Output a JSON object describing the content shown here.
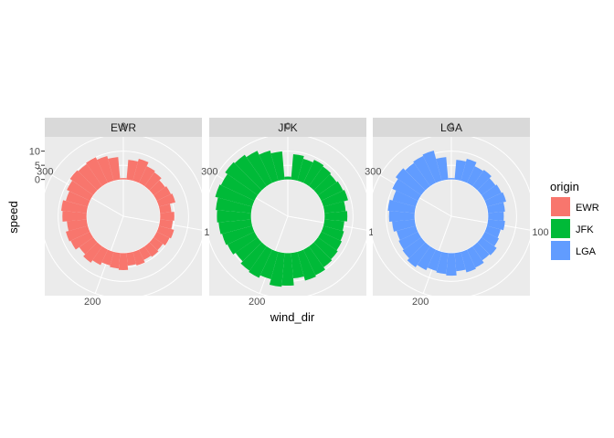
{
  "chart_data": {
    "type": "bar",
    "coord": "polar",
    "xlabel": "wind_dir",
    "ylabel": "speed",
    "x_ticks": [
      "0",
      "100",
      "200",
      "300"
    ],
    "y_ticks": [
      "0",
      "5",
      "10"
    ],
    "xlim": [
      0,
      360
    ],
    "ylim": [
      -13,
      16
    ],
    "grid": true,
    "legend_title": "origin",
    "legend_position": "right",
    "bin_width_deg": 10,
    "wind_dir": [
      0,
      10,
      20,
      30,
      40,
      50,
      60,
      70,
      80,
      90,
      100,
      110,
      120,
      130,
      140,
      150,
      160,
      170,
      180,
      190,
      200,
      210,
      220,
      230,
      240,
      250,
      260,
      270,
      280,
      290,
      300,
      310,
      320,
      330,
      340,
      350
    ],
    "series": [
      {
        "name": "EWR",
        "color": "#F8766D",
        "values": [
          0.5,
          7,
          8,
          6.5,
          6,
          5,
          5.5,
          6,
          4,
          5,
          4.5,
          5.5,
          5,
          4,
          4.5,
          4,
          5,
          4.5,
          6,
          5.5,
          5,
          6,
          7,
          6,
          7.5,
          8,
          7,
          8.5,
          9,
          8,
          9,
          10,
          9.5,
          10,
          9,
          8
        ]
      },
      {
        "name": "JFK",
        "color": "#00BA38",
        "values": [
          1,
          9,
          8,
          9,
          8.5,
          8,
          8.5,
          9,
          7.5,
          8,
          7,
          7.5,
          8,
          8.5,
          9,
          10,
          10.5,
          9,
          11.5,
          12,
          10,
          11,
          10.5,
          9.5,
          10.5,
          11,
          11.5,
          12,
          12.5,
          13.5,
          13,
          14,
          13.5,
          12.5,
          11,
          10
        ]
      },
      {
        "name": "LGA",
        "color": "#619CFF",
        "values": [
          0.5,
          7,
          8,
          6.5,
          7,
          6,
          6.5,
          7,
          6,
          5.5,
          6,
          5,
          5.5,
          6.5,
          6,
          7,
          7.5,
          6.5,
          8,
          7.5,
          7,
          8,
          9,
          8,
          7.5,
          7,
          8,
          9,
          9.5,
          8.5,
          10,
          11,
          10,
          10.5,
          11,
          8
        ]
      }
    ]
  },
  "facets": [
    "EWR",
    "JFK",
    "LGA"
  ],
  "colors": {
    "panel_bg": "#EBEBEB",
    "strip_bg": "#D9D9D9",
    "grid": "#FFFFFF"
  }
}
